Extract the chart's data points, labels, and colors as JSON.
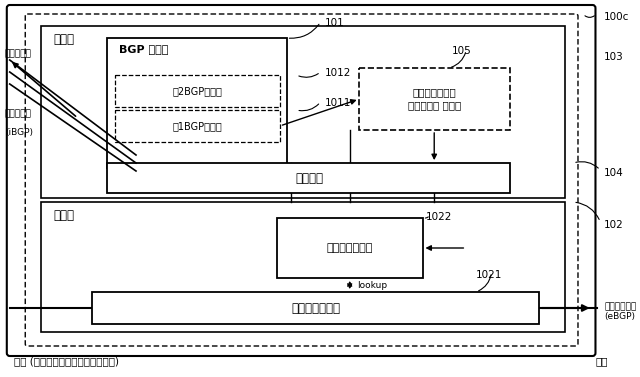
{
  "bg_color": "#ffffff",
  "fig_w": 6.4,
  "fig_h": 3.77,
  "dpi": 100,
  "labels": {
    "100c": "100c",
    "103": "103",
    "104": "104",
    "102": "102",
    "101": "101",
    "1012": "1012",
    "1011": "1011",
    "105": "105",
    "1022": "1022",
    "1021": "1021",
    "control": "制御部",
    "transfer": "転送部",
    "bgp": "BGP 処理部",
    "bgp2": "第2BGP処理部",
    "bgp1": "第1BGP処理部",
    "openflow": "オープンフロー\nプロトコル 処理部",
    "kernel": "カーネル",
    "flowtable": "フローテーブル",
    "packet": "パケット処理部",
    "left_top": "制御装置へ",
    "left_bot_line1": "制御装置へ",
    "left_bot_line2": "(iBGP)",
    "right_line1": "隣接ルータへ",
    "right_line2": "(eBGP)",
    "bottom_left": "内側 (オープンフローネットワーク)",
    "bottom_right": "外側",
    "lookup": "lookup"
  }
}
